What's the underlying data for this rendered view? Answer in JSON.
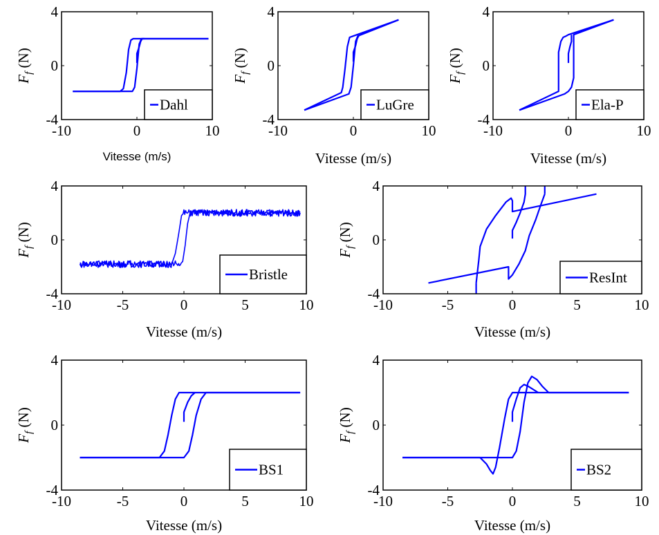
{
  "figure": {
    "ylabel_symbol": "F",
    "ylabel_subscript": "f",
    "ylabel_unit": " (N)",
    "line_color": "#0000ff"
  },
  "chart_data": [
    {
      "type": "line",
      "legend": "Dahl",
      "xlabel": "Vitesse (m/s)",
      "xlim": [
        -10,
        10
      ],
      "ylim": [
        -4,
        4
      ],
      "xticks": [
        "-10",
        "0",
        "10"
      ],
      "yticks": [
        "4",
        "0",
        "-4"
      ],
      "series": [
        {
          "name": "Dahl",
          "x": [
            -8.5,
            -2.2,
            -1.8,
            -1.4,
            -1.1,
            -0.8,
            -0.5,
            9.5
          ],
          "y": [
            -1.9,
            -1.9,
            -1.7,
            -0.5,
            1.2,
            1.9,
            2.0,
            2.0
          ]
        },
        {
          "x": [
            9.5,
            0.6,
            0.3,
            0.0,
            -0.3,
            -0.6,
            -8.5
          ],
          "y": [
            2.0,
            2.0,
            1.6,
            -0.2,
            -1.6,
            -1.9,
            -1.9
          ]
        },
        {
          "x": [
            0.0,
            0.0,
            0.3,
            0.5,
            0.7,
            1.0
          ],
          "y": [
            0.2,
            0.9,
            1.4,
            1.8,
            2.0,
            2.0
          ]
        }
      ]
    },
    {
      "type": "line",
      "legend": "LuGre",
      "xlabel": "Vitesse (m/s)",
      "xlim": [
        -10,
        10
      ],
      "ylim": [
        -4,
        4
      ],
      "xticks": [
        "-10",
        "0",
        "10"
      ],
      "yticks": [
        "4",
        "0",
        "-4"
      ],
      "series": [
        {
          "name": "LuGre",
          "x": [
            -6.5,
            -1.6,
            -1.4,
            -1.1,
            -0.8,
            -0.5,
            0.0,
            6.0
          ],
          "y": [
            -3.3,
            -2.0,
            -1.6,
            -0.2,
            1.4,
            2.1,
            2.2,
            3.4
          ]
        },
        {
          "x": [
            6.0,
            0.6,
            0.3,
            0.0,
            -0.3,
            -0.6,
            -6.5
          ],
          "y": [
            3.4,
            2.2,
            1.8,
            0.0,
            -1.6,
            -2.1,
            -3.3
          ]
        },
        {
          "x": [
            0.0,
            0.0,
            0.3,
            0.5,
            0.7
          ],
          "y": [
            0.3,
            1.0,
            1.5,
            2.0,
            2.2
          ]
        }
      ]
    },
    {
      "type": "line",
      "legend": "Ela-P",
      "xlabel": "Vitesse (m/s)",
      "xlim": [
        -10,
        10
      ],
      "ylim": [
        -4,
        4
      ],
      "xticks": [
        "-10",
        "0",
        "10"
      ],
      "yticks": [
        "4",
        "0",
        "-4"
      ],
      "series": [
        {
          "name": "Ela-P",
          "x": [
            -6.5,
            -1.3,
            -1.3,
            -1.0,
            -0.7,
            -0.3,
            0.0,
            6.0
          ],
          "y": [
            -3.3,
            -1.9,
            1.0,
            1.8,
            2.1,
            2.2,
            2.3,
            3.4
          ]
        },
        {
          "x": [
            6.0,
            0.7,
            0.7,
            0.4,
            0.0,
            -0.5,
            -6.5
          ],
          "y": [
            3.4,
            2.3,
            -0.9,
            -1.6,
            -1.9,
            -2.1,
            -3.3
          ]
        },
        {
          "x": [
            0.0,
            0.0,
            0.2,
            0.4,
            0.4
          ],
          "y": [
            0.2,
            0.9,
            1.4,
            1.8,
            2.3
          ]
        }
      ]
    },
    {
      "type": "line",
      "legend": "Bristle",
      "xlabel": "Vitesse (m/s)",
      "xlim": [
        -10,
        10
      ],
      "ylim": [
        -4,
        4
      ],
      "xticks": [
        "-10",
        "-5",
        "0",
        "5",
        "10"
      ],
      "yticks": [
        "4",
        "0",
        "-4"
      ],
      "noise": 0.25,
      "series": [
        {
          "name": "Bristle",
          "x": [
            -8.5,
            -1.0,
            -0.7,
            -0.4,
            -0.2,
            0.0,
            9.5
          ],
          "y": [
            -1.8,
            -1.8,
            -1.0,
            0.6,
            1.8,
            2.0,
            2.0
          ]
        },
        {
          "x": [
            9.5,
            0.5,
            0.3,
            0.1,
            -0.1,
            -0.3,
            -8.5
          ],
          "y": [
            2.0,
            2.0,
            1.2,
            -0.4,
            -1.6,
            -1.8,
            -1.8
          ]
        }
      ]
    },
    {
      "type": "line",
      "legend": "ResInt",
      "xlabel": "Vitesse (m/s)",
      "xlim": [
        -10,
        10
      ],
      "ylim": [
        -4,
        4
      ],
      "xticks": [
        "-10",
        "-5",
        "0",
        "5",
        "10"
      ],
      "yticks": [
        "4",
        "0",
        "-4"
      ],
      "series": [
        {
          "name": "ResInt",
          "x": [
            -6.5,
            -0.3,
            -0.3,
            0.0,
            0.5,
            1.0,
            1.3,
            1.8,
            2.2,
            2.5
          ],
          "y": [
            -3.2,
            -2.0,
            -2.9,
            -2.6,
            -1.8,
            -0.8,
            0.3,
            1.5,
            2.6,
            3.4
          ]
        },
        {
          "x": [
            2.5,
            2.5
          ],
          "y": [
            3.4,
            4.0
          ]
        },
        {
          "x": [
            6.5,
            0.0,
            0.0,
            -0.1,
            -0.5,
            -1.3,
            -2.0,
            -2.5,
            -2.6,
            -2.8
          ],
          "y": [
            3.4,
            2.1,
            2.9,
            3.1,
            2.8,
            1.8,
            0.8,
            -0.5,
            -1.5,
            -3.2
          ]
        },
        {
          "x": [
            -2.8,
            -2.8
          ],
          "y": [
            -3.2,
            -4.0
          ]
        },
        {
          "x": [
            0.0,
            0.0,
            0.3,
            0.6,
            0.9,
            1.0,
            1.0
          ],
          "y": [
            0.1,
            0.7,
            1.3,
            2.0,
            2.8,
            3.4,
            4.0
          ]
        }
      ]
    },
    {
      "type": "line",
      "legend": "BS1",
      "xlabel": "Vitesse (m/s)",
      "xlim": [
        -10,
        10
      ],
      "ylim": [
        -4,
        4
      ],
      "xticks": [
        "-10",
        "-5",
        "0",
        "5",
        "10"
      ],
      "yticks": [
        "4",
        "0",
        "-4"
      ],
      "series": [
        {
          "name": "BS1",
          "x": [
            -8.5,
            0.0,
            0.4,
            0.7,
            1.0,
            1.4,
            1.8,
            9.5
          ],
          "y": [
            -2.0,
            -2.0,
            -1.6,
            -0.6,
            0.6,
            1.6,
            2.0,
            2.0
          ]
        },
        {
          "x": [
            9.5,
            -0.4,
            -0.7,
            -1.0,
            -1.3,
            -1.6,
            -2.0,
            -8.5
          ],
          "y": [
            2.0,
            2.0,
            1.6,
            0.6,
            -0.6,
            -1.6,
            -2.0,
            -2.0
          ]
        },
        {
          "x": [
            0.0,
            0.0,
            0.3,
            0.6,
            0.9
          ],
          "y": [
            0.2,
            0.8,
            1.4,
            1.8,
            2.0
          ]
        }
      ]
    },
    {
      "type": "line",
      "legend": "BS2",
      "xlabel": "Vitesse (m/s)",
      "xlim": [
        -10,
        10
      ],
      "ylim": [
        -4,
        4
      ],
      "xticks": [
        "-10",
        "-5",
        "0",
        "5",
        "10"
      ],
      "yticks": [
        "4",
        "0",
        "-4"
      ],
      "series": [
        {
          "name": "BS2",
          "x": [
            -8.5,
            -2.5,
            -2.0,
            -1.7,
            -1.5,
            -1.3,
            -1.0,
            -0.6,
            -0.3,
            0.0,
            9.0
          ],
          "y": [
            -2.0,
            -2.0,
            -2.4,
            -2.8,
            -3.0,
            -2.6,
            -1.4,
            0.4,
            1.6,
            2.0,
            2.0
          ]
        },
        {
          "x": [
            9.0,
            2.8,
            2.3,
            1.9,
            1.5,
            1.2,
            0.9,
            0.6,
            0.3,
            0.0,
            -0.3,
            -8.5
          ],
          "y": [
            2.0,
            2.0,
            2.4,
            2.8,
            3.0,
            2.6,
            1.4,
            -0.4,
            -1.6,
            -2.0,
            -2.0,
            -2.0
          ]
        },
        {
          "x": [
            0.0,
            0.0,
            0.3,
            0.6,
            0.9,
            1.2,
            1.6,
            2.0
          ],
          "y": [
            0.2,
            0.8,
            1.6,
            2.3,
            2.5,
            2.4,
            2.2,
            2.0
          ]
        }
      ]
    }
  ]
}
